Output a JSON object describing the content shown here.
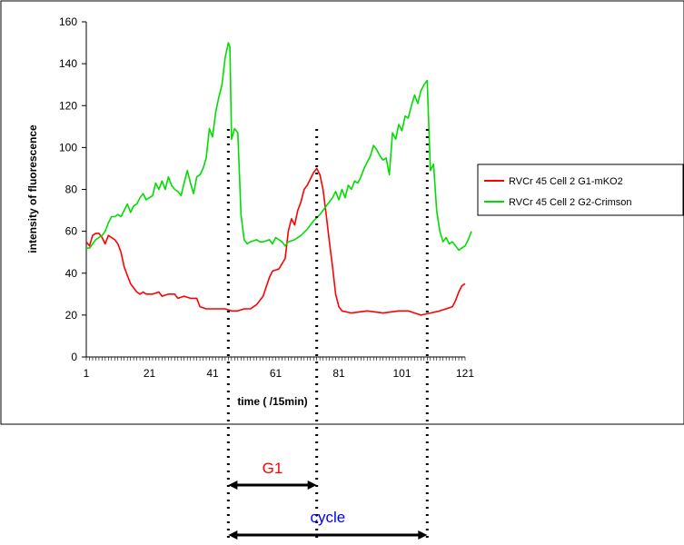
{
  "chart_data": {
    "type": "line",
    "title": "",
    "xlabel": "time ( /15min)",
    "ylabel": "intensity of fluorescence",
    "xlim": [
      1,
      121
    ],
    "ylim": [
      0,
      160
    ],
    "xticks": [
      1,
      21,
      41,
      61,
      81,
      101,
      121
    ],
    "yticks": [
      0,
      20,
      40,
      60,
      80,
      100,
      120,
      140,
      160
    ],
    "grid": false,
    "legend_position": "right",
    "series": [
      {
        "name": "RVCr 45 Cell 2 G1-mKO2",
        "color": "#ff0000",
        "points": [
          [
            1,
            55
          ],
          [
            2,
            53
          ],
          [
            3,
            58
          ],
          [
            4,
            59
          ],
          [
            5,
            59
          ],
          [
            6,
            57
          ],
          [
            7,
            54
          ],
          [
            8,
            58
          ],
          [
            9,
            57
          ],
          [
            10,
            56
          ],
          [
            11,
            54
          ],
          [
            12,
            50
          ],
          [
            13,
            43
          ],
          [
            14,
            39
          ],
          [
            15,
            35
          ],
          [
            16,
            33
          ],
          [
            17,
            31
          ],
          [
            18,
            30
          ],
          [
            19,
            31
          ],
          [
            20,
            30
          ],
          [
            22,
            30
          ],
          [
            24,
            31
          ],
          [
            25,
            29
          ],
          [
            27,
            30
          ],
          [
            29,
            30
          ],
          [
            30,
            28
          ],
          [
            32,
            29
          ],
          [
            34,
            28
          ],
          [
            36,
            28
          ],
          [
            37,
            24
          ],
          [
            39,
            23
          ],
          [
            41,
            23
          ],
          [
            43,
            23
          ],
          [
            45,
            23
          ],
          [
            47,
            22
          ],
          [
            49,
            22
          ],
          [
            51,
            23
          ],
          [
            53,
            23
          ],
          [
            55,
            25
          ],
          [
            57,
            29
          ],
          [
            59,
            38
          ],
          [
            60,
            41
          ],
          [
            62,
            42
          ],
          [
            64,
            47
          ],
          [
            65,
            60
          ],
          [
            66,
            66
          ],
          [
            67,
            63
          ],
          [
            68,
            70
          ],
          [
            69,
            74
          ],
          [
            70,
            80
          ],
          [
            71,
            82
          ],
          [
            72,
            85
          ],
          [
            73,
            88
          ],
          [
            74,
            90
          ],
          [
            75,
            87
          ],
          [
            76,
            80
          ],
          [
            77,
            68
          ],
          [
            78,
            55
          ],
          [
            79,
            43
          ],
          [
            80,
            30
          ],
          [
            81,
            24
          ],
          [
            82,
            22
          ],
          [
            85,
            21
          ],
          [
            90,
            22
          ],
          [
            95,
            21
          ],
          [
            100,
            22
          ],
          [
            103,
            22
          ],
          [
            105,
            21
          ],
          [
            107,
            20
          ],
          [
            110,
            21
          ],
          [
            113,
            22
          ],
          [
            115,
            23
          ],
          [
            117,
            24
          ],
          [
            118,
            27
          ],
          [
            119,
            31
          ],
          [
            120,
            34
          ],
          [
            121,
            35
          ]
        ]
      },
      {
        "name": "RVCr 45 Cell 2 G2-Crimson",
        "color": "#00dd00",
        "points": [
          [
            1,
            52
          ],
          [
            2,
            52
          ],
          [
            3,
            54
          ],
          [
            4,
            56
          ],
          [
            5,
            57
          ],
          [
            6,
            58
          ],
          [
            7,
            60
          ],
          [
            8,
            64
          ],
          [
            9,
            67
          ],
          [
            10,
            67
          ],
          [
            11,
            68
          ],
          [
            12,
            67
          ],
          [
            13,
            70
          ],
          [
            14,
            73
          ],
          [
            15,
            69
          ],
          [
            16,
            72
          ],
          [
            17,
            73
          ],
          [
            18,
            76
          ],
          [
            19,
            78
          ],
          [
            20,
            75
          ],
          [
            21,
            76
          ],
          [
            22,
            77
          ],
          [
            23,
            83
          ],
          [
            24,
            80
          ],
          [
            25,
            84
          ],
          [
            26,
            80
          ],
          [
            27,
            86
          ],
          [
            28,
            82
          ],
          [
            29,
            80
          ],
          [
            30,
            79
          ],
          [
            31,
            77
          ],
          [
            32,
            83
          ],
          [
            33,
            89
          ],
          [
            34,
            83
          ],
          [
            35,
            78
          ],
          [
            36,
            86
          ],
          [
            37,
            87
          ],
          [
            38,
            90
          ],
          [
            39,
            95
          ],
          [
            40,
            109
          ],
          [
            41,
            105
          ],
          [
            42,
            117
          ],
          [
            43,
            124
          ],
          [
            44,
            130
          ],
          [
            45,
            143
          ],
          [
            46,
            150
          ],
          [
            46.5,
            148
          ],
          [
            47,
            104
          ],
          [
            48,
            109
          ],
          [
            49,
            107
          ],
          [
            50,
            68
          ],
          [
            51,
            56
          ],
          [
            52,
            54
          ],
          [
            53,
            55
          ],
          [
            55,
            56
          ],
          [
            56,
            55
          ],
          [
            57,
            55
          ],
          [
            59,
            56
          ],
          [
            60,
            54
          ],
          [
            61,
            57
          ],
          [
            62,
            56
          ],
          [
            63,
            55
          ],
          [
            64,
            53
          ],
          [
            65,
            55
          ],
          [
            67,
            56
          ],
          [
            69,
            58
          ],
          [
            71,
            61
          ],
          [
            73,
            65
          ],
          [
            75,
            68
          ],
          [
            77,
            72
          ],
          [
            79,
            76
          ],
          [
            80,
            79
          ],
          [
            81,
            75
          ],
          [
            82,
            80
          ],
          [
            83,
            76
          ],
          [
            84,
            82
          ],
          [
            85,
            80
          ],
          [
            86,
            84
          ],
          [
            87,
            83
          ],
          [
            88,
            86
          ],
          [
            89,
            90
          ],
          [
            90,
            93
          ],
          [
            91,
            96
          ],
          [
            92,
            101
          ],
          [
            93,
            99
          ],
          [
            94,
            96
          ],
          [
            95,
            94
          ],
          [
            96,
            95
          ],
          [
            97,
            87
          ],
          [
            98,
            107
          ],
          [
            99,
            104
          ],
          [
            100,
            111
          ],
          [
            101,
            108
          ],
          [
            102,
            115
          ],
          [
            103,
            114
          ],
          [
            104,
            120
          ],
          [
            105,
            125
          ],
          [
            106,
            121
          ],
          [
            107,
            127
          ],
          [
            108,
            130
          ],
          [
            109,
            132
          ],
          [
            110,
            89
          ],
          [
            111,
            92
          ],
          [
            112,
            70
          ],
          [
            113,
            60
          ],
          [
            114,
            55
          ],
          [
            115,
            57
          ],
          [
            116,
            54
          ],
          [
            117,
            55
          ],
          [
            118,
            53
          ],
          [
            119,
            51
          ],
          [
            120,
            52
          ],
          [
            121,
            53
          ],
          [
            122,
            56
          ],
          [
            123,
            60
          ]
        ]
      }
    ],
    "annotations": [
      {
        "type": "vline",
        "x": 46
      },
      {
        "type": "vline",
        "x": 74
      },
      {
        "type": "vline",
        "x": 109
      },
      {
        "type": "span",
        "label": "G1",
        "from": 46,
        "to": 74,
        "color": "#ff0000"
      },
      {
        "type": "span",
        "label": "cycle",
        "from": 46,
        "to": 109,
        "color": "#0000ff"
      }
    ]
  }
}
